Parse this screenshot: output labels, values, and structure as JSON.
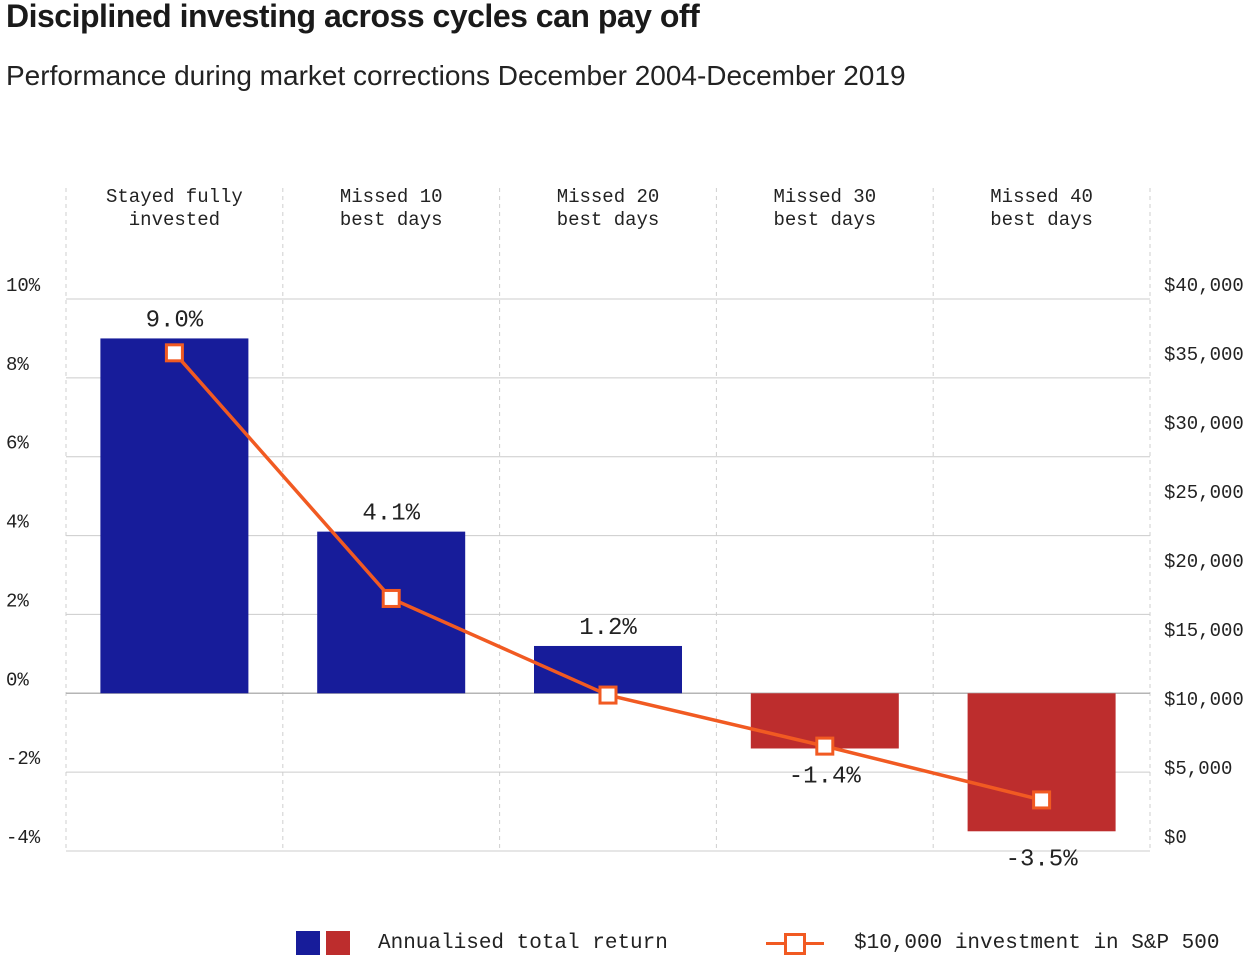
{
  "title": "Disciplined investing across cycles can pay off",
  "subtitle": "Performance during market corrections December 2004-December 2019",
  "colors": {
    "positive_bar": "#171c9a",
    "negative_bar": "#bd2d2d",
    "line": "#f15a22",
    "grid": "#cccccc"
  },
  "legend": {
    "bar_label": "Annualised total return",
    "line_label": "$10,000 investment in S&P 500"
  },
  "chart_data": {
    "type": "bar",
    "categories": [
      "Stayed fully\ninvested",
      "Missed 10\nbest days",
      "Missed 20\nbest days",
      "Missed 30\nbest days",
      "Missed 40\nbest days"
    ],
    "series": [
      {
        "name": "Annualised total return",
        "type": "bar",
        "axis": "left",
        "values": [
          9.0,
          4.1,
          1.2,
          -1.4,
          -3.5
        ],
        "labels": [
          "9.0%",
          "4.1%",
          "1.2%",
          "-1.4%",
          "-3.5%"
        ]
      },
      {
        "name": "$10,000 investment in S&P 500",
        "type": "line",
        "axis": "right",
        "values": [
          36100,
          18300,
          11300,
          7600,
          3700
        ]
      }
    ],
    "left_axis": {
      "ylim": [
        -4,
        10
      ],
      "ticks": [
        10,
        8,
        6,
        4,
        2,
        0,
        -2,
        -4
      ],
      "tick_labels": [
        "10%",
        "8%",
        "6%",
        "4%",
        "2%",
        "0%",
        "-2%",
        "-4%"
      ]
    },
    "right_axis": {
      "ylim": [
        0,
        40000
      ],
      "ticks": [
        40000,
        35000,
        30000,
        25000,
        20000,
        15000,
        10000,
        5000,
        0
      ],
      "tick_labels": [
        "$40,000",
        "$35,000",
        "$30,000",
        "$25,000",
        "$20,000",
        "$15,000",
        "$10,000",
        "$5,000",
        "$0"
      ]
    },
    "grid": true,
    "legend_position": "bottom"
  }
}
